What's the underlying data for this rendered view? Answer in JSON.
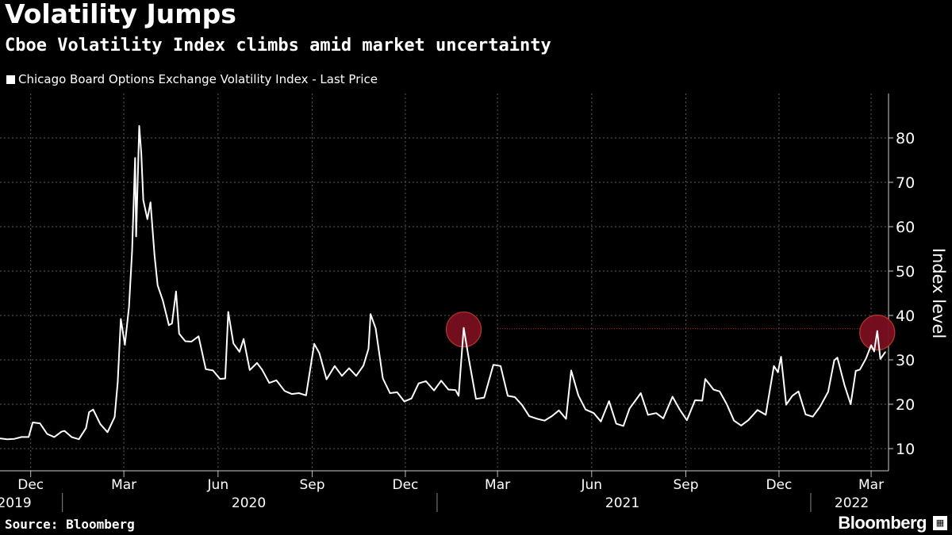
{
  "header": {
    "title": "Volatility Jumps",
    "subtitle": "Cboe Volatility Index climbs amid market uncertainty"
  },
  "legend": {
    "label": "Chicago Board Options Exchange Volatility Index - Last Price"
  },
  "footer": {
    "source": "Source: Bloomberg",
    "brand": "Bloomberg"
  },
  "colors": {
    "background": "#000000",
    "line": "#ffffff",
    "grid": "#5a5a5a",
    "highlight_circle": "#7a0f20",
    "highlight_stroke": "#c0392b",
    "reference_line": "#d03030"
  },
  "chart_data": {
    "type": "line",
    "title": "Volatility Jumps",
    "subtitle": "Cboe Volatility Index climbs amid market uncertainty",
    "ylabel": "Index level",
    "ylim": [
      5,
      90
    ],
    "yticks": [
      10,
      20,
      30,
      40,
      50,
      60,
      70,
      80
    ],
    "x_range": [
      "2019-11-01",
      "2022-03-18"
    ],
    "month_ticks": [
      {
        "label": "Dec",
        "date": "2019-12-01"
      },
      {
        "label": "Mar",
        "date": "2020-03-01"
      },
      {
        "label": "Jun",
        "date": "2020-06-01"
      },
      {
        "label": "Sep",
        "date": "2020-09-01"
      },
      {
        "label": "Dec",
        "date": "2020-12-01"
      },
      {
        "label": "Mar",
        "date": "2021-03-01"
      },
      {
        "label": "Jun",
        "date": "2021-06-01"
      },
      {
        "label": "Sep",
        "date": "2021-09-01"
      },
      {
        "label": "Dec",
        "date": "2021-12-01"
      },
      {
        "label": "Mar",
        "date": "2022-03-01"
      }
    ],
    "year_labels": [
      {
        "label": "2019",
        "date": "2019-11-15"
      },
      {
        "label": "2020",
        "date": "2020-07-01"
      },
      {
        "label": "2021",
        "date": "2021-07-01"
      },
      {
        "label": "2022",
        "date": "2022-02-10"
      }
    ],
    "year_separators": [
      "2020-01-01",
      "2021-01-01",
      "2022-01-01"
    ],
    "grid": true,
    "legend_position": "top-left",
    "series": [
      {
        "name": "Chicago Board Options Exchange Volatility Index - Last Price",
        "points": [
          [
            "2019-11-01",
            12.3
          ],
          [
            "2019-11-08",
            12.1
          ],
          [
            "2019-11-15",
            12.2
          ],
          [
            "2019-11-22",
            12.6
          ],
          [
            "2019-11-29",
            12.6
          ],
          [
            "2019-12-03",
            15.9
          ],
          [
            "2019-12-10",
            15.7
          ],
          [
            "2019-12-17",
            13.3
          ],
          [
            "2019-12-24",
            12.6
          ],
          [
            "2019-12-31",
            13.8
          ],
          [
            "2020-01-03",
            14.0
          ],
          [
            "2020-01-10",
            12.6
          ],
          [
            "2020-01-17",
            12.1
          ],
          [
            "2020-01-24",
            14.6
          ],
          [
            "2020-01-27",
            18.2
          ],
          [
            "2020-01-31",
            18.8
          ],
          [
            "2020-02-07",
            15.5
          ],
          [
            "2020-02-14",
            13.7
          ],
          [
            "2020-02-21",
            17.1
          ],
          [
            "2020-02-24",
            25.0
          ],
          [
            "2020-02-27",
            39.2
          ],
          [
            "2020-03-02",
            33.4
          ],
          [
            "2020-03-06",
            41.9
          ],
          [
            "2020-03-09",
            54.5
          ],
          [
            "2020-03-12",
            75.5
          ],
          [
            "2020-03-13",
            57.8
          ],
          [
            "2020-03-16",
            82.7
          ],
          [
            "2020-03-18",
            76.5
          ],
          [
            "2020-03-20",
            66.0
          ],
          [
            "2020-03-24",
            61.7
          ],
          [
            "2020-03-27",
            65.5
          ],
          [
            "2020-03-31",
            53.5
          ],
          [
            "2020-04-03",
            46.8
          ],
          [
            "2020-04-08",
            43.4
          ],
          [
            "2020-04-14",
            37.8
          ],
          [
            "2020-04-17",
            38.2
          ],
          [
            "2020-04-21",
            45.4
          ],
          [
            "2020-04-24",
            35.9
          ],
          [
            "2020-04-30",
            34.2
          ],
          [
            "2020-05-06",
            34.1
          ],
          [
            "2020-05-13",
            35.3
          ],
          [
            "2020-05-20",
            27.9
          ],
          [
            "2020-05-27",
            27.6
          ],
          [
            "2020-06-03",
            25.7
          ],
          [
            "2020-06-08",
            25.8
          ],
          [
            "2020-06-11",
            40.8
          ],
          [
            "2020-06-16",
            33.7
          ],
          [
            "2020-06-22",
            31.8
          ],
          [
            "2020-06-26",
            34.7
          ],
          [
            "2020-07-02",
            27.7
          ],
          [
            "2020-07-09",
            29.3
          ],
          [
            "2020-07-14",
            27.8
          ],
          [
            "2020-07-21",
            24.8
          ],
          [
            "2020-07-28",
            25.4
          ],
          [
            "2020-08-05",
            23.0
          ],
          [
            "2020-08-12",
            22.3
          ],
          [
            "2020-08-19",
            22.5
          ],
          [
            "2020-08-26",
            22.0
          ],
          [
            "2020-09-03",
            33.6
          ],
          [
            "2020-09-08",
            31.5
          ],
          [
            "2020-09-15",
            25.6
          ],
          [
            "2020-09-23",
            28.6
          ],
          [
            "2020-09-30",
            26.4
          ],
          [
            "2020-10-07",
            28.1
          ],
          [
            "2020-10-14",
            26.4
          ],
          [
            "2020-10-21",
            28.7
          ],
          [
            "2020-10-26",
            32.5
          ],
          [
            "2020-10-28",
            40.3
          ],
          [
            "2020-11-02",
            37.1
          ],
          [
            "2020-11-09",
            25.8
          ],
          [
            "2020-11-16",
            22.5
          ],
          [
            "2020-11-23",
            22.7
          ],
          [
            "2020-11-30",
            20.6
          ],
          [
            "2020-12-07",
            21.3
          ],
          [
            "2020-12-14",
            24.7
          ],
          [
            "2020-12-21",
            25.2
          ],
          [
            "2020-12-29",
            23.1
          ],
          [
            "2021-01-05",
            25.3
          ],
          [
            "2021-01-12",
            23.3
          ],
          [
            "2021-01-19",
            23.2
          ],
          [
            "2021-01-22",
            21.9
          ],
          [
            "2021-01-27",
            37.2
          ],
          [
            "2021-02-01",
            30.2
          ],
          [
            "2021-02-08",
            21.2
          ],
          [
            "2021-02-16",
            21.5
          ],
          [
            "2021-02-25",
            28.9
          ],
          [
            "2021-03-04",
            28.6
          ],
          [
            "2021-03-11",
            21.9
          ],
          [
            "2021-03-18",
            21.6
          ],
          [
            "2021-03-25",
            19.8
          ],
          [
            "2021-04-01",
            17.3
          ],
          [
            "2021-04-09",
            16.7
          ],
          [
            "2021-04-16",
            16.3
          ],
          [
            "2021-04-23",
            17.3
          ],
          [
            "2021-04-30",
            18.6
          ],
          [
            "2021-05-07",
            16.7
          ],
          [
            "2021-05-12",
            27.6
          ],
          [
            "2021-05-19",
            22.0
          ],
          [
            "2021-05-26",
            18.8
          ],
          [
            "2021-06-03",
            18.0
          ],
          [
            "2021-06-10",
            16.1
          ],
          [
            "2021-06-18",
            20.7
          ],
          [
            "2021-06-25",
            15.6
          ],
          [
            "2021-07-02",
            15.1
          ],
          [
            "2021-07-08",
            19.0
          ],
          [
            "2021-07-19",
            22.5
          ],
          [
            "2021-07-26",
            17.6
          ],
          [
            "2021-08-03",
            18.0
          ],
          [
            "2021-08-10",
            16.8
          ],
          [
            "2021-08-19",
            21.7
          ],
          [
            "2021-08-26",
            18.8
          ],
          [
            "2021-09-02",
            16.4
          ],
          [
            "2021-09-10",
            20.9
          ],
          [
            "2021-09-17",
            20.8
          ],
          [
            "2021-09-20",
            25.7
          ],
          [
            "2021-09-28",
            23.3
          ],
          [
            "2021-10-04",
            22.9
          ],
          [
            "2021-10-11",
            20.0
          ],
          [
            "2021-10-18",
            16.3
          ],
          [
            "2021-10-25",
            15.2
          ],
          [
            "2021-11-01",
            16.4
          ],
          [
            "2021-11-10",
            18.7
          ],
          [
            "2021-11-18",
            17.6
          ],
          [
            "2021-11-26",
            28.6
          ],
          [
            "2021-11-30",
            27.2
          ],
          [
            "2021-12-03",
            30.7
          ],
          [
            "2021-12-08",
            19.9
          ],
          [
            "2021-12-14",
            21.9
          ],
          [
            "2021-12-20",
            22.9
          ],
          [
            "2021-12-27",
            17.7
          ],
          [
            "2022-01-03",
            17.2
          ],
          [
            "2022-01-10",
            19.4
          ],
          [
            "2022-01-18",
            22.8
          ],
          [
            "2022-01-24",
            29.9
          ],
          [
            "2022-01-27",
            30.5
          ],
          [
            "2022-02-03",
            24.3
          ],
          [
            "2022-02-09",
            20.0
          ],
          [
            "2022-02-14",
            27.5
          ],
          [
            "2022-02-18",
            27.8
          ],
          [
            "2022-02-24",
            30.3
          ],
          [
            "2022-03-01",
            33.3
          ],
          [
            "2022-03-04",
            31.9
          ],
          [
            "2022-03-07",
            36.5
          ],
          [
            "2022-03-10",
            30.2
          ],
          [
            "2022-03-15",
            31.8
          ]
        ]
      }
    ],
    "highlights": [
      {
        "date": "2021-01-27",
        "value": 37.2
      },
      {
        "date": "2022-03-07",
        "value": 36.5
      }
    ],
    "reference_line": {
      "value": 37,
      "from": "2021-03-01",
      "to": "2022-02-26"
    }
  }
}
